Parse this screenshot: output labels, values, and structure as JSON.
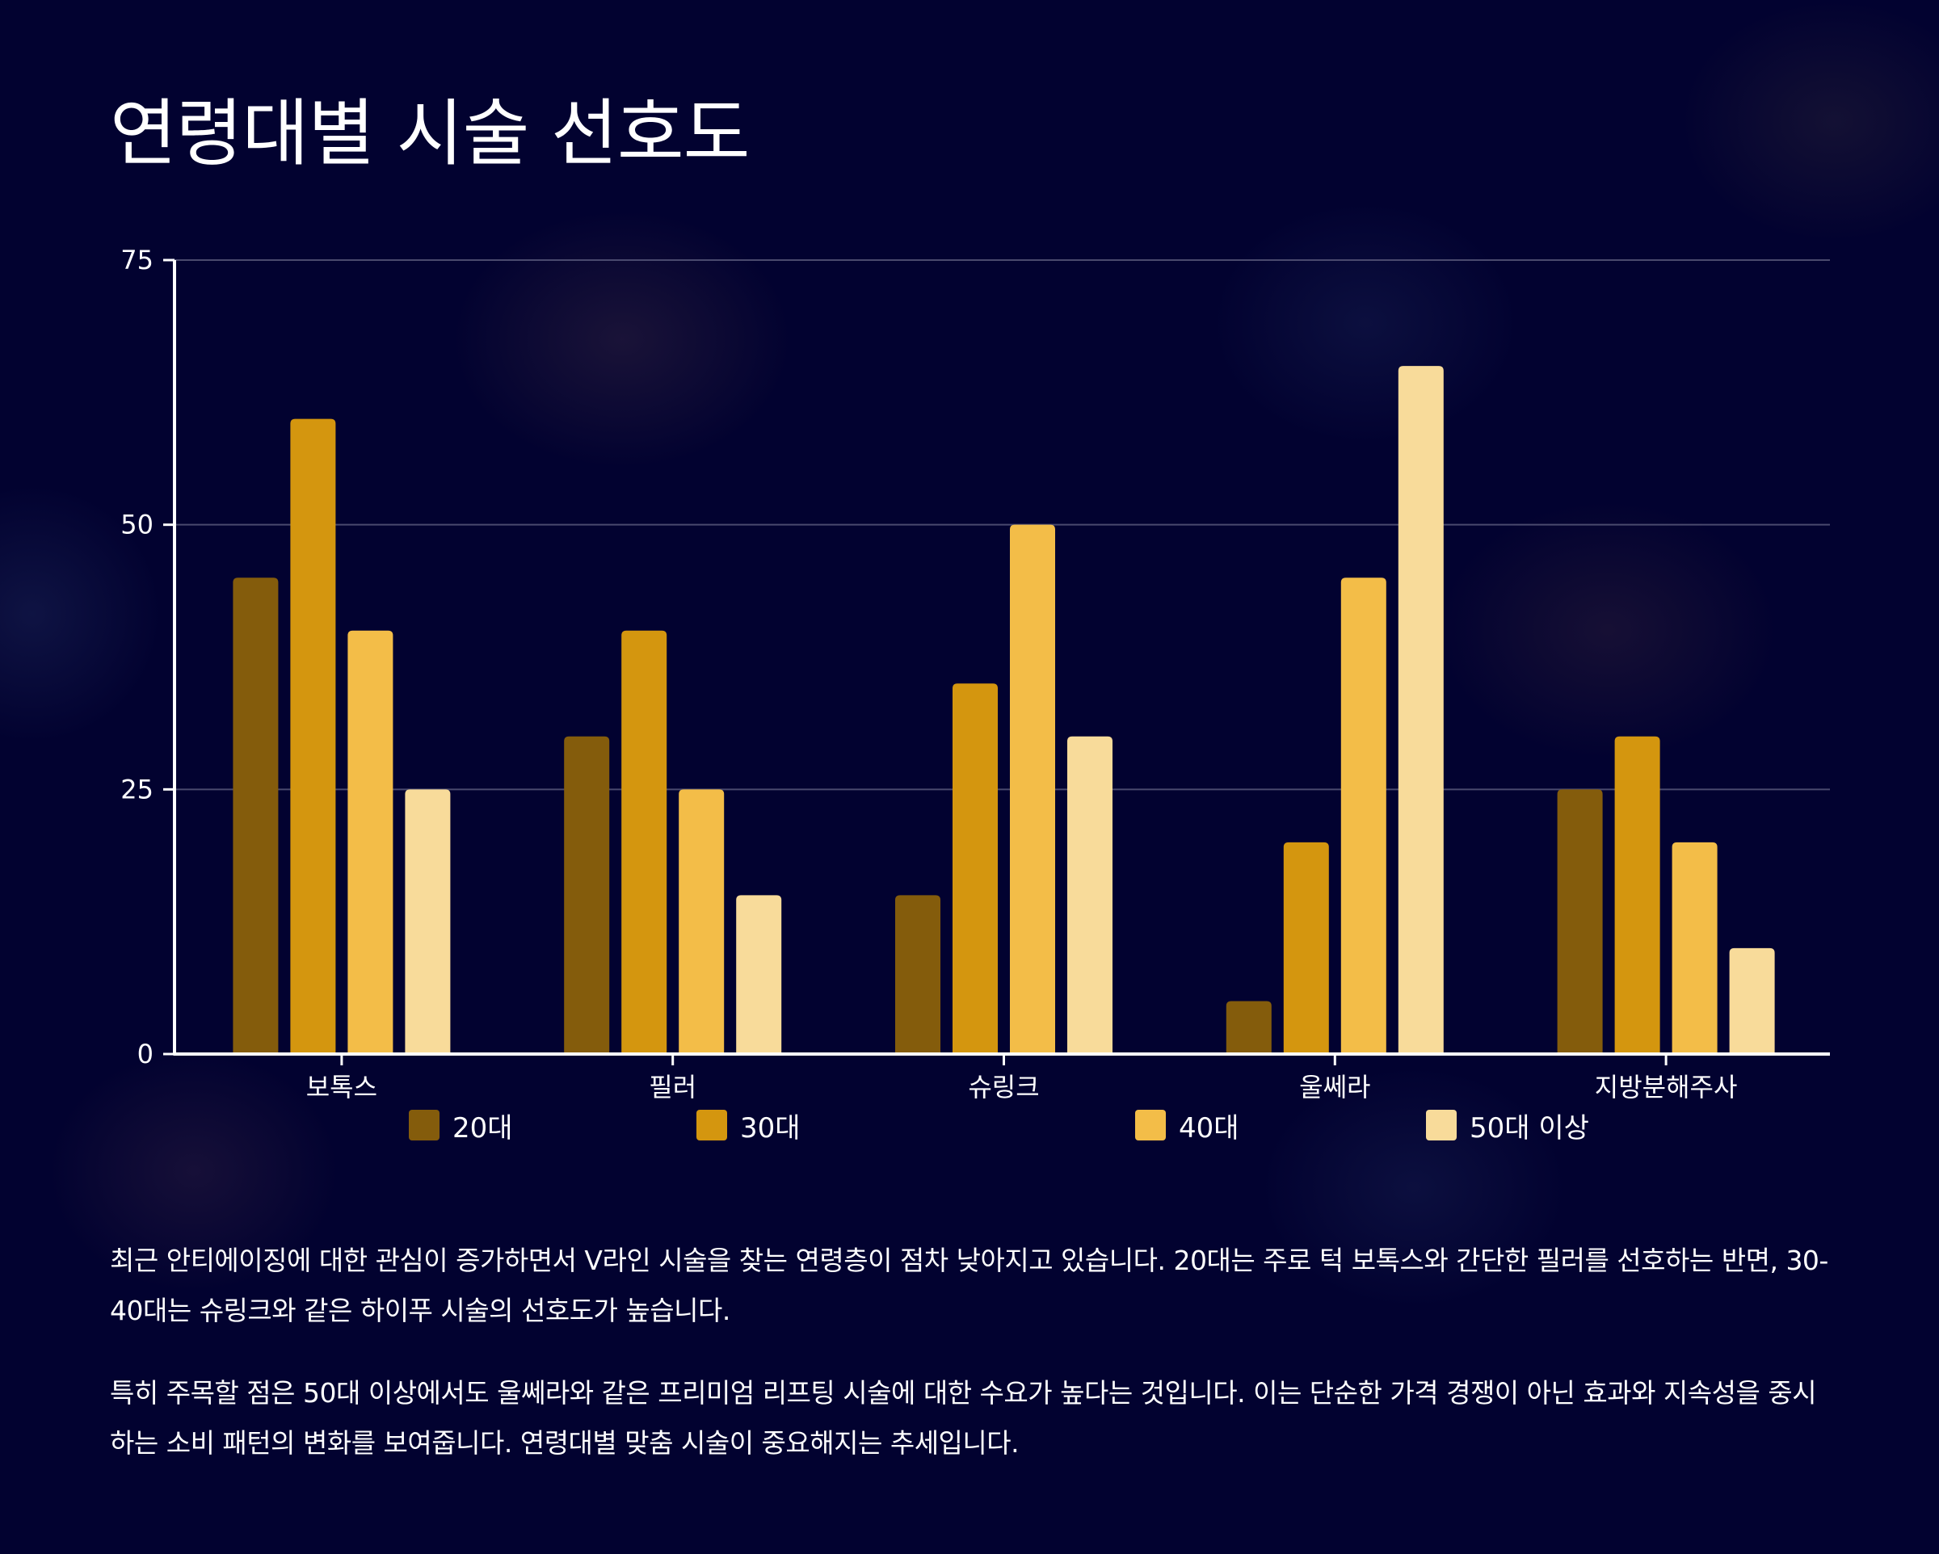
{
  "title": "연령대별 시술 선호도",
  "colors": {
    "background": "#020230",
    "20대": "#845C0C",
    "30대": "#D4960F",
    "40대": "#F3BD48",
    "50대 이상": "#F8DB9A",
    "axis": "#ffffff",
    "grid": "#4a4a6e"
  },
  "chart_data": {
    "type": "bar",
    "categories": [
      "보톡스",
      "필러",
      "슈링크",
      "울쎄라",
      "지방분해주사"
    ],
    "series": [
      {
        "name": "20대",
        "values": [
          45,
          30,
          15,
          5,
          25
        ]
      },
      {
        "name": "30대",
        "values": [
          60,
          40,
          35,
          20,
          30
        ]
      },
      {
        "name": "40대",
        "values": [
          40,
          25,
          50,
          45,
          20
        ]
      },
      {
        "name": "50대 이상",
        "values": [
          25,
          15,
          30,
          65,
          10
        ]
      }
    ],
    "ylim": [
      0,
      75
    ],
    "yticks": [
      "0",
      "25",
      "50",
      "75"
    ],
    "grid": true,
    "legend_position": "bottom"
  },
  "paragraphs": [
    "최근 안티에이징에 대한 관심이 증가하면서 V라인 시술을 찾는 연령층이 점차 낮아지고 있습니다. 20대는 주로 턱 보톡스와 간단한 필러를 선호하는 반면, 30-40대는 슈링크와 같은 하이푸 시술의 선호도가 높습니다.",
    "특히 주목할 점은 50대 이상에서도 울쎄라와 같은 프리미엄 리프팅 시술에 대한 수요가 높다는 것입니다. 이는 단순한 가격 경쟁이 아닌 효과와 지속성을 중시하는 소비 패턴의 변화를 보여줍니다. 연령대별 맞춤 시술이 중요해지는 추세입니다."
  ]
}
